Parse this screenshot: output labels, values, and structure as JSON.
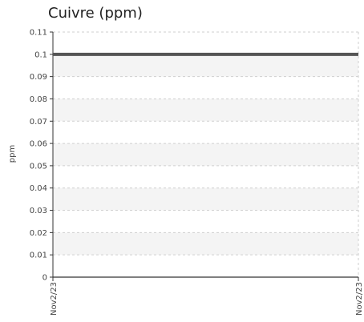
{
  "chart_data": {
    "type": "line",
    "title": "Cuivre (ppm)",
    "ylabel": "ppm",
    "xlabel": "",
    "ylim": [
      0,
      0.11
    ],
    "y_ticks": [
      "0",
      "0.01",
      "0.02",
      "0.03",
      "0.04",
      "0.05",
      "0.06",
      "0.07",
      "0.08",
      "0.09",
      "0.1",
      "0.11"
    ],
    "x_ticks": [
      "Nov2/23",
      "Nov2/23"
    ],
    "grid": true,
    "series": [
      {
        "x": [
          "Nov2/23",
          "Nov2/23"
        ],
        "values": [
          0.1,
          0.1
        ],
        "color": "#555555"
      }
    ]
  }
}
